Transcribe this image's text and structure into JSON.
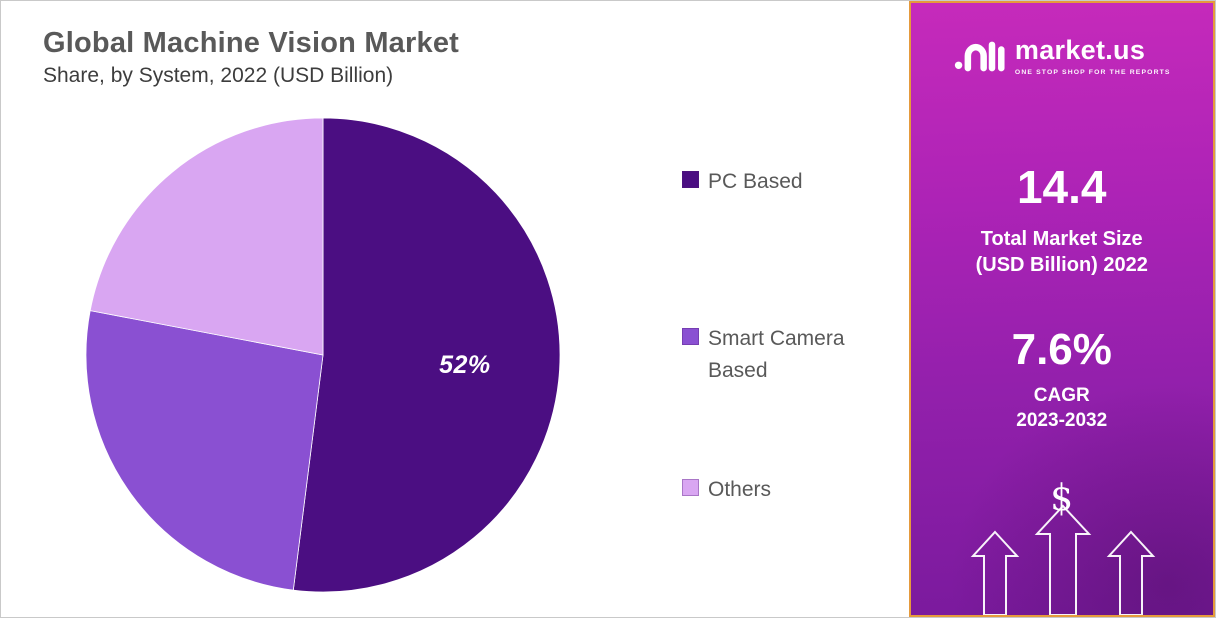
{
  "header": {
    "title": "Global Machine Vision Market",
    "subtitle": "Share, by System, 2022 (USD Billion)"
  },
  "chart_data": {
    "type": "pie",
    "title": "Global Machine Vision Market Share, by System, 2022 (USD Billion)",
    "categories": [
      "PC Based",
      "Smart Camera Based",
      "Others"
    ],
    "values": [
      52,
      26,
      22
    ],
    "unit": "%",
    "slice_labels": [
      "52%",
      "",
      ""
    ],
    "colors": [
      "#4b0e82",
      "#8a50d2",
      "#d9a6f2"
    ],
    "start_angle_deg": 0,
    "direction": "clockwise",
    "legend_position": "right",
    "legend_entries": [
      "PC Based",
      "Smart Camera Based",
      "Others"
    ]
  },
  "sidebar": {
    "logo": {
      "text": "market.us",
      "tagline": "ONE STOP SHOP FOR THE REPORTS"
    },
    "stats": [
      {
        "value": "14.4",
        "label_line1": "Total Market Size",
        "label_line2": "(USD Billion) 2022"
      },
      {
        "value": "7.6%",
        "label_line1": "CAGR",
        "label_line2": "2023-2032"
      }
    ],
    "dollar_sign": "$"
  },
  "colors": {
    "pie_pc_based": "#4b0e82",
    "pie_smart_camera": "#8a50d2",
    "pie_others": "#d9a6f2",
    "panel_border": "#e59a3c",
    "panel_gradient_top": "#c62abb",
    "panel_gradient_bottom": "#7a1a9d",
    "title_text": "#595959",
    "legend_text": "#595959",
    "slice_label_text": "#ffffff"
  }
}
